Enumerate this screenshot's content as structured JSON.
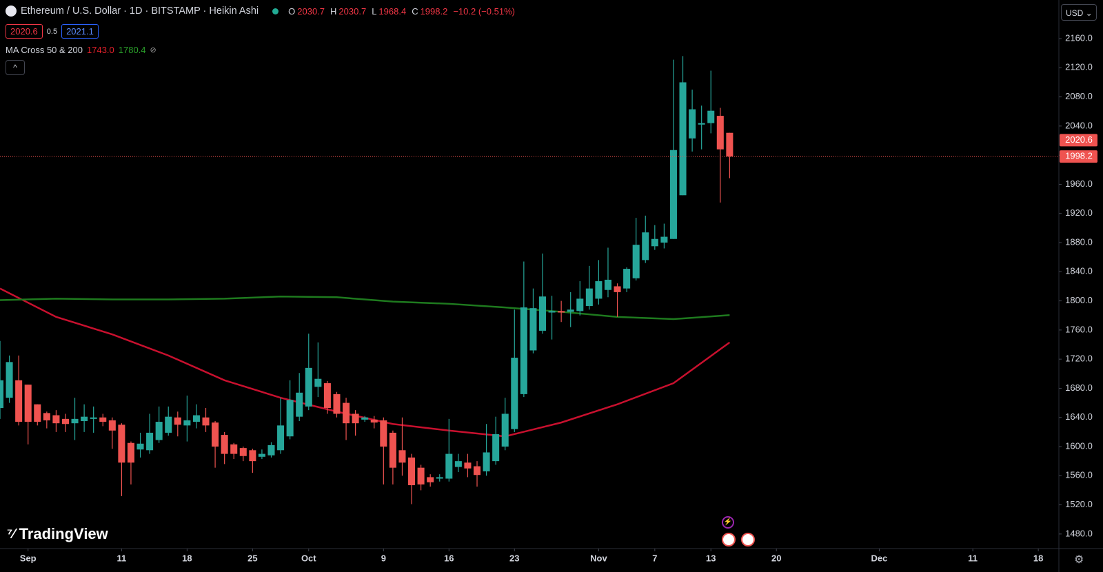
{
  "header": {
    "symbol": "Ethereum / U.S. Dollar · 1D · BITSTAMP · Heikin Ashi",
    "ohlc_labels": [
      "O",
      "H",
      "L",
      "C"
    ],
    "change": "−10.2 (−0.51%)",
    "bid": 2020.6,
    "spread": 0.5,
    "ask": 2021.1,
    "indicator": "MA Cross 50 & 200",
    "currency": "USD",
    "logo": "TradingView"
  },
  "chart_data": {
    "type": "candlestick",
    "up_color": "#26a69a",
    "down_color": "#ef5350",
    "grid": false,
    "xlim": [
      0,
      113.2
    ],
    "xticks": [
      {
        "value": 3,
        "label": "Sep"
      },
      {
        "value": 13,
        "label": "11"
      },
      {
        "value": 20,
        "label": "18"
      },
      {
        "value": 27,
        "label": "25"
      },
      {
        "value": 33,
        "label": "Oct"
      },
      {
        "value": 41,
        "label": "9"
      },
      {
        "value": 48,
        "label": "16"
      },
      {
        "value": 55,
        "label": "23"
      },
      {
        "value": 64,
        "label": "Nov"
      },
      {
        "value": 70,
        "label": "7"
      },
      {
        "value": 76,
        "label": "13"
      },
      {
        "value": 83,
        "label": "20"
      },
      {
        "value": 94,
        "label": "Dec"
      },
      {
        "value": 104,
        "label": "11"
      },
      {
        "value": 111,
        "label": "18"
      }
    ],
    "ylim": [
      1460,
      2213
    ],
    "yticks": [
      {
        "value": 1480,
        "label": "1480.0"
      },
      {
        "value": 1520,
        "label": "1520.0"
      },
      {
        "value": 1560,
        "label": "1560.0"
      },
      {
        "value": 1600,
        "label": "1600.0"
      },
      {
        "value": 1640,
        "label": "1640.0"
      },
      {
        "value": 1680,
        "label": "1680.0"
      },
      {
        "value": 1720,
        "label": "1720.0"
      },
      {
        "value": 1760,
        "label": "1760.0"
      },
      {
        "value": 1800,
        "label": "1800.0"
      },
      {
        "value": 1840,
        "label": "1840.0"
      },
      {
        "value": 1880,
        "label": "1880.0"
      },
      {
        "value": 1920,
        "label": "1920.0"
      },
      {
        "value": 1960,
        "label": "1960.0"
      },
      {
        "value": 2000,
        "label": "2000.0"
      },
      {
        "value": 2040,
        "label": "2040.0"
      },
      {
        "value": 2080,
        "label": "2080.0"
      },
      {
        "value": 2120,
        "label": "2120.0"
      },
      {
        "value": 2160,
        "label": "2160.0"
      }
    ],
    "open": [
      1653,
      1667,
      1691,
      1685,
      1658,
      1646,
      1643,
      1638,
      1632,
      1635,
      1638,
      1640,
      1636,
      1630,
      1605,
      1596,
      1595,
      1609,
      1619,
      1640,
      1629,
      1634,
      1640,
      1633,
      1616,
      1603,
      1598,
      1595,
      1586,
      1588,
      1595,
      1614,
      1641,
      1655,
      1682,
      1687,
      1672,
      1660,
      1645,
      1637,
      1637,
      1636,
      1619,
      1595,
      1585,
      1571,
      1558,
      1556,
      1556,
      1572,
      1578,
      1573,
      1566,
      1580,
      1600,
      1624,
      1672,
      1732,
      1759,
      1784,
      1786,
      1785,
      1786,
      1793,
      1803,
      1815,
      1820,
      1817,
      1831,
      1856,
      1875,
      1880,
      1885,
      1945,
      2023,
      2042,
      2044,
      2054,
      2030.7
    ],
    "high": [
      1745,
      1725,
      1725,
      1685,
      1658,
      1648,
      1650,
      1645,
      1667,
      1658,
      1655,
      1645,
      1640,
      1632,
      1607,
      1619,
      1645,
      1655,
      1655,
      1648,
      1670,
      1658,
      1653,
      1635,
      1620,
      1605,
      1600,
      1597,
      1596,
      1606,
      1667,
      1691,
      1701,
      1755,
      1743,
      1690,
      1675,
      1667,
      1650,
      1642,
      1642,
      1640,
      1622,
      1640,
      1590,
      1575,
      1562,
      1562,
      1638,
      1590,
      1590,
      1580,
      1631,
      1641,
      1667,
      1788,
      1854,
      1817,
      1865,
      1807,
      1800,
      1812,
      1827,
      1848,
      1856,
      1873,
      1824,
      1846,
      1914,
      1917,
      1904,
      1906,
      2131,
      2136,
      2090,
      2068,
      2116,
      2065,
      2030.7
    ],
    "low": [
      1638,
      1660,
      1629,
      1603,
      1629,
      1625,
      1620,
      1620,
      1609,
      1620,
      1619,
      1628,
      1597,
      1532,
      1548,
      1585,
      1590,
      1605,
      1615,
      1614,
      1607,
      1625,
      1620,
      1571,
      1576,
      1583,
      1580,
      1564,
      1583,
      1585,
      1590,
      1610,
      1635,
      1650,
      1668,
      1645,
      1640,
      1609,
      1615,
      1634,
      1625,
      1548,
      1548,
      1560,
      1521,
      1540,
      1545,
      1552,
      1552,
      1565,
      1558,
      1545,
      1560,
      1575,
      1595,
      1620,
      1668,
      1728,
      1755,
      1747,
      1771,
      1764,
      1780,
      1788,
      1795,
      1805,
      1778,
      1812,
      1828,
      1852,
      1870,
      1872,
      1885,
      1945,
      2005,
      2008,
      2030,
      1935,
      1968.4
    ],
    "close": [
      1691,
      1716,
      1634,
      1634,
      1634,
      1636,
      1632,
      1631,
      1638,
      1641,
      1640,
      1634,
      1622,
      1578,
      1578,
      1604,
      1619,
      1634,
      1641,
      1630,
      1636,
      1643,
      1629,
      1600,
      1590,
      1590,
      1587,
      1580,
      1590,
      1602,
      1629,
      1664,
      1674,
      1708,
      1693,
      1653,
      1645,
      1632,
      1632,
      1640,
      1633,
      1600,
      1571,
      1578,
      1547,
      1548,
      1551,
      1558,
      1590,
      1580,
      1570,
      1561,
      1592,
      1617,
      1645,
      1722,
      1791,
      1790,
      1806,
      1786,
      1784,
      1788,
      1803,
      1817,
      1827,
      1829,
      1812,
      1844,
      1877,
      1894,
      1885,
      1888,
      2007,
      2100,
      2063,
      2044,
      2061,
      2008,
      1998.2
    ],
    "series": [
      {
        "color": "#c8102e",
        "x": [
          0,
          6,
          12,
          18,
          24,
          30,
          36,
          42,
          48,
          54,
          60,
          66,
          72,
          78
        ],
        "values": [
          1817,
          1778,
          1754,
          1725,
          1691,
          1667,
          1648,
          1631,
          1622,
          1614,
          1633,
          1658,
          1687,
          1743
        ],
        "value_labels": [
          null,
          null,
          null,
          null,
          null,
          null,
          null,
          null,
          null,
          null,
          null,
          null,
          null,
          "1743.0"
        ]
      },
      {
        "color": "#1e7a1e",
        "x": [
          0,
          6,
          12,
          18,
          24,
          30,
          36,
          42,
          48,
          54,
          60,
          66,
          72,
          78
        ],
        "values": [
          1801,
          1803,
          1802,
          1802,
          1803,
          1806,
          1805,
          1799,
          1796,
          1791,
          1785,
          1778,
          1775,
          1780.4
        ]
      }
    ]
  }
}
